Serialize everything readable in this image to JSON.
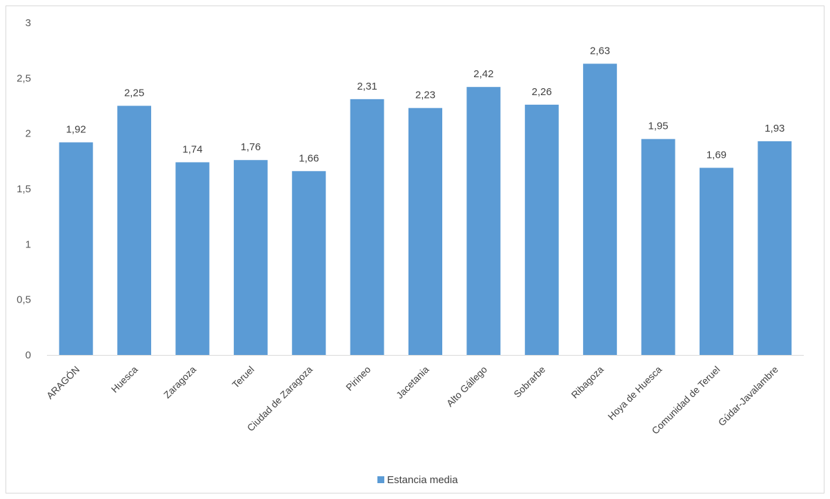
{
  "chart_data": {
    "type": "bar",
    "categories": [
      "ARAGÓN",
      "Huesca",
      "Zaragoza",
      "Teruel",
      "Ciudad de Zaragoza",
      "Pirineo",
      "Jacetania",
      "Alto Gállego",
      "Sobrarbe",
      "Ribagoza",
      "Hoya de Huesca",
      "Comunidad de Teruel",
      "Gúdar-Javalambre"
    ],
    "series": [
      {
        "name": "Estancia media",
        "values": [
          1.92,
          2.25,
          1.74,
          1.76,
          1.66,
          2.31,
          2.23,
          2.42,
          2.26,
          2.63,
          1.95,
          1.69,
          1.93
        ],
        "value_labels": [
          "1,92",
          "2,25",
          "1,74",
          "1,76",
          "1,66",
          "2,31",
          "2,23",
          "2,42",
          "2,26",
          "2,63",
          "1,95",
          "1,69",
          "1,93"
        ],
        "color": "#5b9bd5"
      }
    ],
    "ylim": [
      0,
      3
    ],
    "yticks": [
      0,
      0.5,
      1,
      1.5,
      2,
      2.5,
      3
    ],
    "ytick_labels": [
      "0",
      "0,5",
      "1",
      "1,5",
      "2",
      "2,5",
      "3"
    ],
    "title": "",
    "xlabel": "",
    "ylabel": "",
    "grid": false,
    "legend_position": "bottom-center"
  }
}
